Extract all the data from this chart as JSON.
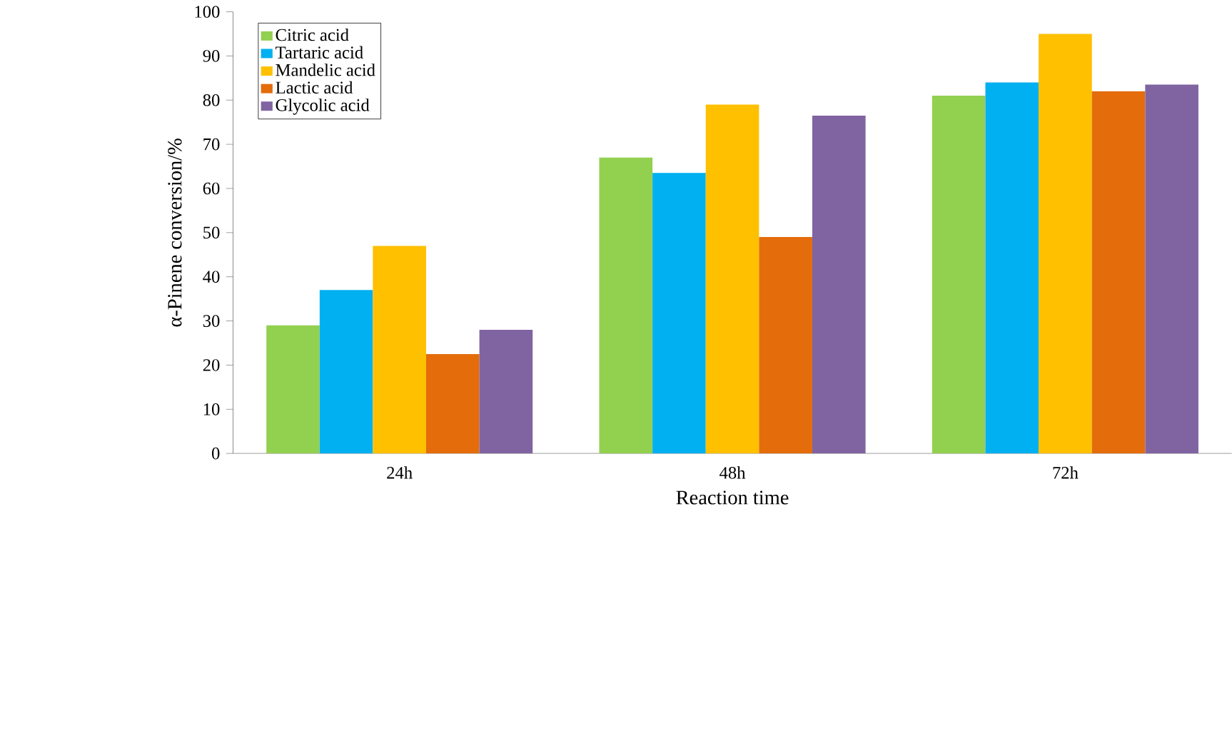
{
  "chart_data": {
    "type": "bar",
    "xlabel": "Reaction time",
    "ylabel": "α-Pinene conversion/%",
    "categories": [
      "24h",
      "48h",
      "72h"
    ],
    "series": [
      {
        "name": "Citric acid",
        "color": "#92d050",
        "values": [
          29,
          67,
          81
        ]
      },
      {
        "name": "Tartaric acid",
        "color": "#00b0f0",
        "values": [
          37,
          63.5,
          84
        ]
      },
      {
        "name": "Mandelic acid",
        "color": "#ffc000",
        "values": [
          47,
          79,
          95
        ]
      },
      {
        "name": "Lactic acid",
        "color": "#e46c0a",
        "values": [
          22.5,
          49,
          82
        ]
      },
      {
        "name": "Glycolic acid",
        "color": "#8064a2",
        "values": [
          28,
          76.5,
          83.5
        ]
      }
    ],
    "ylim": [
      0,
      100
    ],
    "yticks": [
      0,
      10,
      20,
      30,
      40,
      50,
      60,
      70,
      80,
      90,
      100
    ],
    "legend": "top left",
    "grid": false
  }
}
